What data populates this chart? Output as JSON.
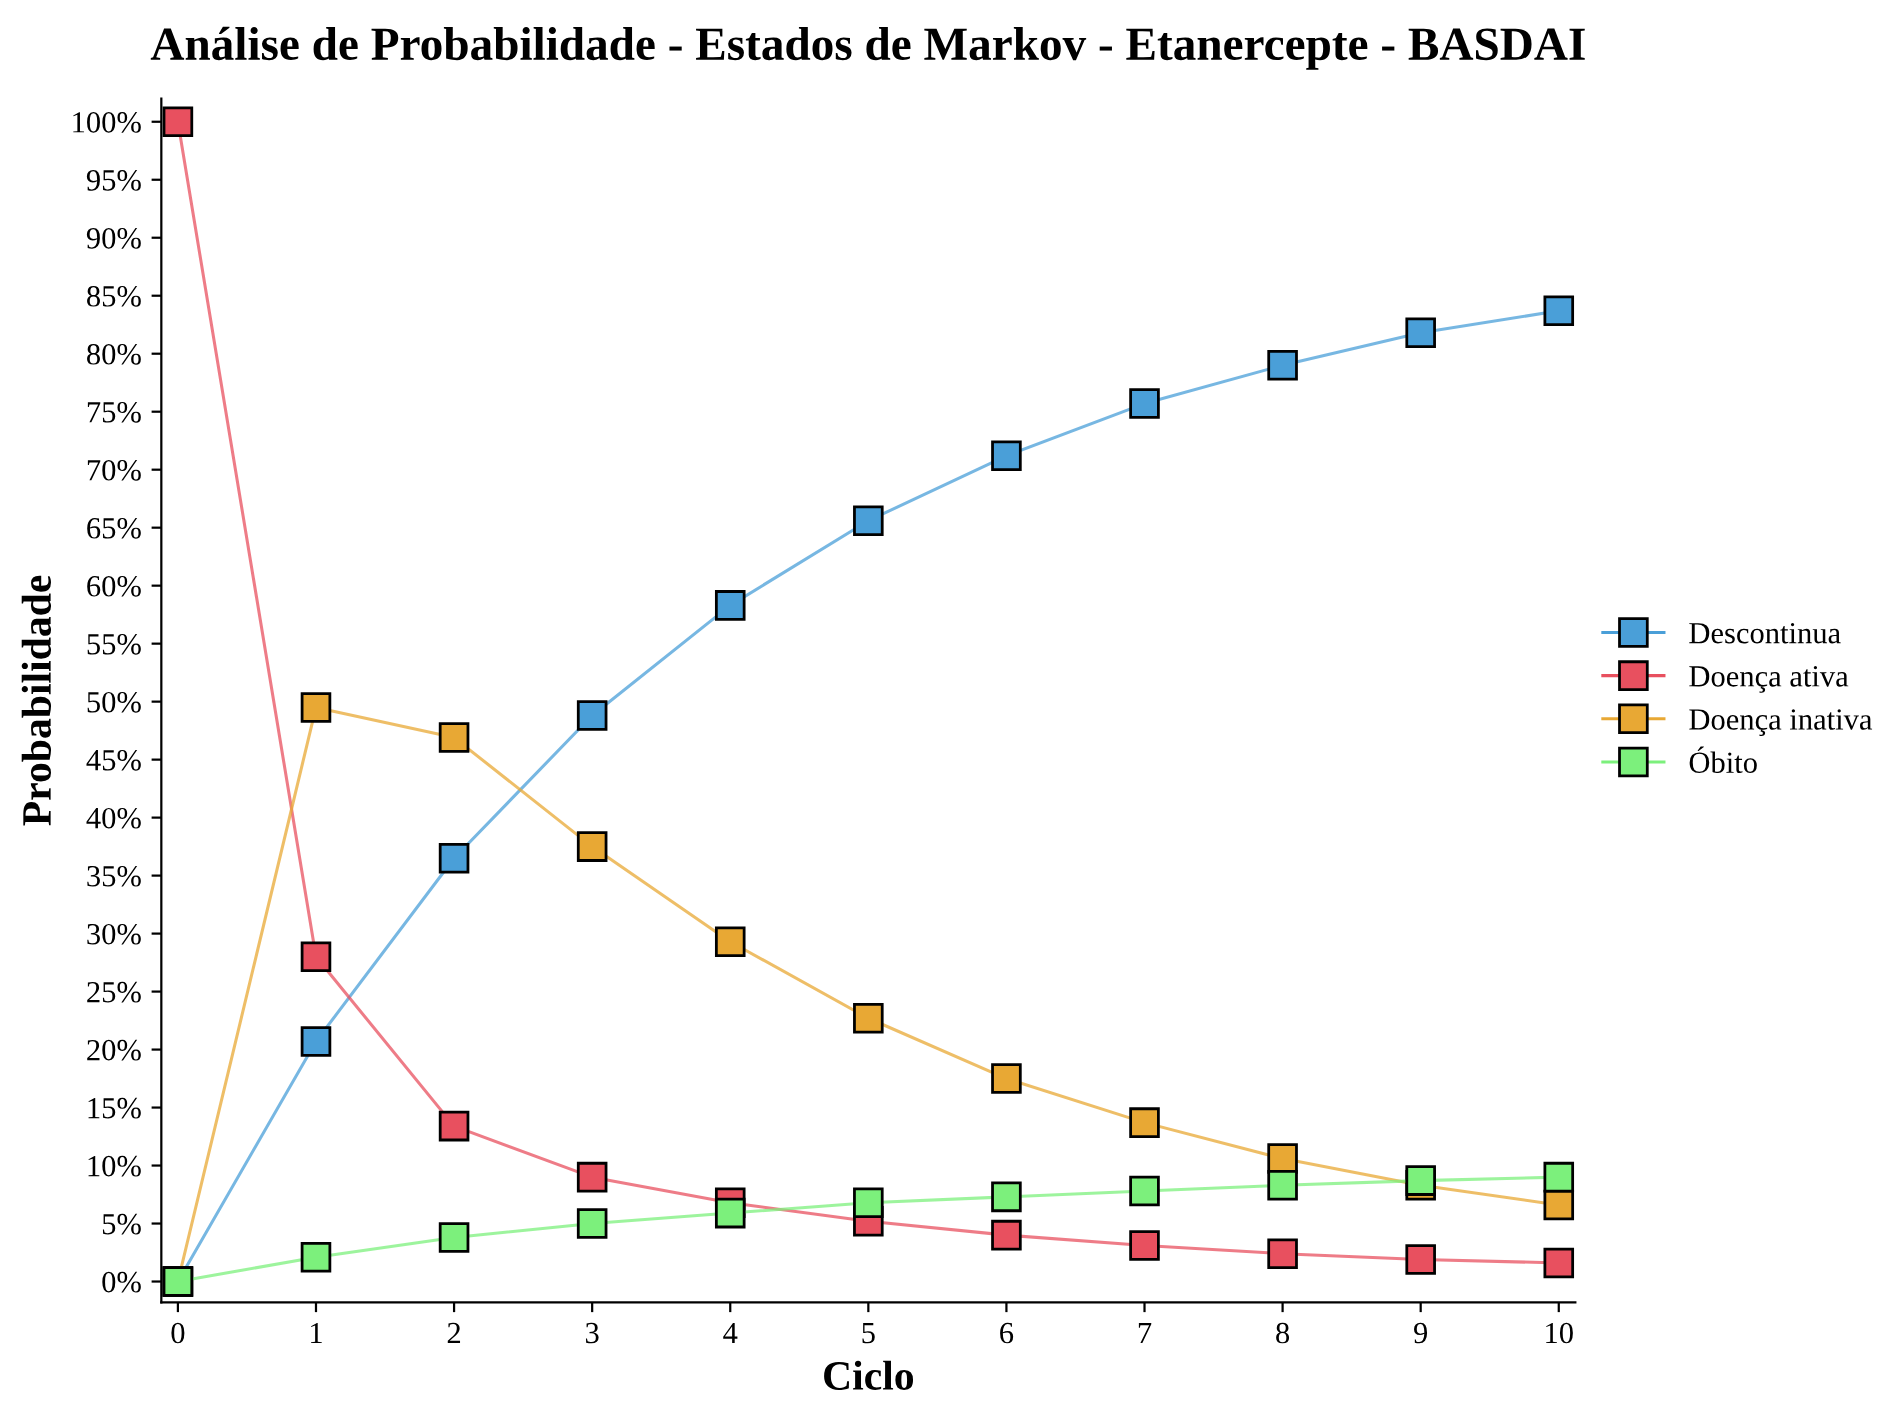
{
  "chart_data": {
    "type": "line",
    "title": "Análise de Probabilidade - Estados de Markov - Etanercepte - BASDAI",
    "xlabel": "Ciclo",
    "ylabel": "Probabilidade",
    "x": [
      0,
      1,
      2,
      3,
      4,
      5,
      6,
      7,
      8,
      9,
      10
    ],
    "series": [
      {
        "name": "Descontinua",
        "color": "#4a9fd8",
        "values": [
          0,
          20.7,
          36.5,
          48.8,
          58.3,
          65.6,
          71.2,
          75.7,
          79.0,
          81.8,
          83.7
        ]
      },
      {
        "name": "Doença ativa",
        "color": "#e8505f",
        "values": [
          100,
          28.0,
          13.4,
          9.0,
          6.8,
          5.2,
          4.0,
          3.1,
          2.4,
          1.9,
          1.6
        ]
      },
      {
        "name": "Doença inativa",
        "color": "#e8a834",
        "values": [
          0,
          49.5,
          46.9,
          37.5,
          29.3,
          22.7,
          17.5,
          13.7,
          10.6,
          8.3,
          6.6
        ]
      },
      {
        "name": "Óbito",
        "color": "#7cf07c",
        "values": [
          0,
          2.1,
          3.8,
          5.0,
          5.9,
          6.8,
          7.3,
          7.8,
          8.3,
          8.7,
          9.0
        ]
      }
    ],
    "xlim": [
      -0.12,
      10.12
    ],
    "ylim": [
      -1.8,
      102
    ],
    "xticks": [
      0,
      1,
      2,
      3,
      4,
      5,
      6,
      7,
      8,
      9,
      10
    ],
    "yticks": [
      {
        "value": 0,
        "label": "0%"
      },
      {
        "value": 5,
        "label": "5%"
      },
      {
        "value": 10,
        "label": "10%"
      },
      {
        "value": 15,
        "label": "15%"
      },
      {
        "value": 20,
        "label": "20%"
      },
      {
        "value": 25,
        "label": "25%"
      },
      {
        "value": 30,
        "label": "30%"
      },
      {
        "value": 35,
        "label": "35%"
      },
      {
        "value": 40,
        "label": "40%"
      },
      {
        "value": 45,
        "label": "45%"
      },
      {
        "value": 50,
        "label": "50%"
      },
      {
        "value": 55,
        "label": "55%"
      },
      {
        "value": 60,
        "label": "60%"
      },
      {
        "value": 65,
        "label": "65%"
      },
      {
        "value": 70,
        "label": "70%"
      },
      {
        "value": 75,
        "label": "75%"
      },
      {
        "value": 80,
        "label": "80%"
      },
      {
        "value": 85,
        "label": "85%"
      },
      {
        "value": 90,
        "label": "90%"
      },
      {
        "value": 95,
        "label": "95%"
      },
      {
        "value": 100,
        "label": "100%"
      }
    ],
    "grid": false,
    "legend": "right",
    "marker": "square",
    "line_style": "solid"
  }
}
